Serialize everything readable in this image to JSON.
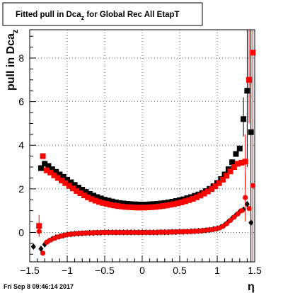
{
  "chart_data": {
    "type": "scatter",
    "title_main": "Fitted pull in Dca",
    "title_sub": "z",
    "title_rest": " for Global Rec All EtapT",
    "ylabel_main": "pull in Dca",
    "ylabel_sub": "z",
    "xlabel": "η",
    "timestamp": "Fri Sep  8 09:46:14 2017",
    "xlim": [
      -1.5,
      1.5
    ],
    "ylim": [
      -1.35,
      9.3
    ],
    "grid": true,
    "xticks": [
      -1.5,
      -1,
      -0.5,
      0,
      0.5,
      1,
      1.5
    ],
    "xtick_labels": [
      "−1.5",
      "−1",
      "−0.5",
      "0",
      "0.5",
      "1",
      "1.5"
    ],
    "yticks": [
      0,
      2,
      4,
      6,
      8
    ],
    "ytick_labels": [
      "0",
      "2",
      "4",
      "6",
      "8"
    ],
    "colors": {
      "black": "#000000",
      "red": "#ff0000"
    },
    "series": [
      {
        "marker": "square",
        "color": "#000000",
        "x": [
          -1.35,
          -1.3,
          -1.25,
          -1.2,
          -1.15,
          -1.1,
          -1.05,
          -1.0,
          -0.95,
          -0.9,
          -0.85,
          -0.8,
          -0.75,
          -0.7,
          -0.65,
          -0.6,
          -0.55,
          -0.5,
          -0.45,
          -0.4,
          -0.35,
          -0.3,
          -0.25,
          -0.2,
          -0.15,
          -0.1,
          -0.05,
          0.0,
          0.05,
          0.1,
          0.15,
          0.2,
          0.25,
          0.3,
          0.35,
          0.4,
          0.45,
          0.5,
          0.55,
          0.6,
          0.65,
          0.7,
          0.75,
          0.8,
          0.85,
          0.9,
          0.95,
          1.0,
          1.05,
          1.1,
          1.15,
          1.2,
          1.25,
          1.3,
          1.35,
          1.4,
          1.45
        ],
        "y": [
          2.95,
          3.15,
          3.05,
          2.9,
          2.78,
          2.66,
          2.55,
          2.42,
          2.3,
          2.18,
          2.06,
          1.96,
          1.86,
          1.77,
          1.69,
          1.62,
          1.56,
          1.5,
          1.46,
          1.42,
          1.38,
          1.35,
          1.33,
          1.31,
          1.3,
          1.29,
          1.28,
          1.28,
          1.28,
          1.29,
          1.3,
          1.31,
          1.33,
          1.35,
          1.38,
          1.41,
          1.44,
          1.48,
          1.52,
          1.57,
          1.62,
          1.68,
          1.74,
          1.81,
          1.9,
          2.0,
          2.12,
          2.27,
          2.45,
          2.66,
          2.9,
          3.22,
          3.6,
          3.85,
          5.2,
          6.5,
          4.6
        ]
      },
      {
        "marker": "square",
        "color": "#ff0000",
        "x": [
          -1.375,
          -1.325,
          -1.275,
          -1.225,
          -1.175,
          -1.125,
          -1.075,
          -1.025,
          -0.975,
          -0.925,
          -0.875,
          -0.825,
          -0.775,
          -0.725,
          -0.675,
          -0.625,
          -0.575,
          -0.525,
          -0.475,
          -0.425,
          -0.375,
          -0.325,
          -0.275,
          -0.225,
          -0.175,
          -0.125,
          -0.075,
          -0.025,
          0.025,
          0.075,
          0.125,
          0.175,
          0.225,
          0.275,
          0.325,
          0.375,
          0.425,
          0.475,
          0.525,
          0.575,
          0.625,
          0.675,
          0.725,
          0.775,
          0.825,
          0.875,
          0.925,
          0.975,
          1.025,
          1.075,
          1.125,
          1.175,
          1.225,
          1.275,
          1.325,
          1.375,
          1.425,
          1.475
        ],
        "y": [
          0.3,
          3.5,
          2.85,
          2.75,
          2.62,
          2.5,
          2.38,
          2.26,
          2.14,
          2.02,
          1.9,
          1.8,
          1.7,
          1.61,
          1.53,
          1.46,
          1.4,
          1.35,
          1.31,
          1.27,
          1.24,
          1.21,
          1.19,
          1.17,
          1.16,
          1.15,
          1.14,
          1.14,
          1.14,
          1.15,
          1.16,
          1.17,
          1.19,
          1.21,
          1.24,
          1.27,
          1.3,
          1.34,
          1.38,
          1.43,
          1.48,
          1.54,
          1.61,
          1.69,
          1.78,
          1.88,
          1.99,
          2.12,
          2.26,
          2.42,
          2.6,
          2.8,
          3.0,
          3.15,
          3.2,
          3.25,
          7.0,
          8.25
        ]
      },
      {
        "marker": "diamond",
        "color": "#000000",
        "x": [
          -1.45,
          -1.35,
          -1.3,
          -1.25,
          -1.2,
          -1.15,
          -1.1,
          -1.05,
          -1.0,
          -0.95,
          -0.9,
          -0.85,
          -0.8,
          -0.75,
          -0.7,
          -0.65,
          -0.6,
          -0.55,
          -0.5,
          -0.45,
          -0.4,
          -0.35,
          -0.3,
          -0.25,
          -0.2,
          -0.15,
          -0.1,
          -0.05,
          0.0,
          0.05,
          0.1,
          0.15,
          0.2,
          0.25,
          0.3,
          0.35,
          0.4,
          0.45,
          0.5,
          0.55,
          0.6,
          0.65,
          0.7,
          0.75,
          0.8,
          0.85,
          0.9,
          0.95,
          1.0,
          1.05,
          1.1,
          1.15,
          1.2,
          1.25,
          1.3,
          1.35,
          1.4,
          1.45
        ],
        "y": [
          -0.65,
          -0.75,
          -0.55,
          -0.4,
          -0.3,
          -0.23,
          -0.18,
          -0.14,
          -0.1,
          -0.08,
          -0.06,
          -0.05,
          -0.04,
          -0.03,
          -0.02,
          -0.02,
          -0.01,
          -0.01,
          0.0,
          0.0,
          0.0,
          0.0,
          0.0,
          0.0,
          0.0,
          0.0,
          0.0,
          0.0,
          0.0,
          0.0,
          0.0,
          0.0,
          0.0,
          0.01,
          0.01,
          0.01,
          0.02,
          0.02,
          0.03,
          0.03,
          0.04,
          0.05,
          0.06,
          0.07,
          0.08,
          0.1,
          0.12,
          0.15,
          0.18,
          0.25,
          0.35,
          0.5,
          0.65,
          0.8,
          0.95,
          1.05,
          1.3,
          0.45
        ]
      },
      {
        "marker": "circle",
        "color": "#ff0000",
        "x": [
          -1.375,
          -1.325,
          -1.275,
          -1.225,
          -1.175,
          -1.125,
          -1.075,
          -1.025,
          -0.975,
          -0.925,
          -0.875,
          -0.825,
          -0.775,
          -0.725,
          -0.675,
          -0.625,
          -0.575,
          -0.525,
          -0.475,
          -0.425,
          -0.375,
          -0.325,
          -0.275,
          -0.225,
          -0.175,
          -0.125,
          -0.075,
          -0.025,
          0.025,
          0.075,
          0.125,
          0.175,
          0.225,
          0.275,
          0.325,
          0.375,
          0.425,
          0.475,
          0.525,
          0.575,
          0.625,
          0.675,
          0.725,
          0.775,
          0.825,
          0.875,
          0.925,
          0.975,
          1.025,
          1.075,
          1.125,
          1.175,
          1.225,
          1.275,
          1.325,
          1.375,
          1.425,
          1.475
        ],
        "y": [
          0.05,
          -0.95,
          -0.45,
          -0.35,
          -0.27,
          -0.21,
          -0.16,
          -0.12,
          -0.09,
          -0.07,
          -0.05,
          -0.04,
          -0.03,
          -0.02,
          -0.02,
          -0.01,
          -0.01,
          0.0,
          0.0,
          0.0,
          0.0,
          0.0,
          0.0,
          0.0,
          0.0,
          0.0,
          0.0,
          0.0,
          0.0,
          0.0,
          0.0,
          0.0,
          0.01,
          0.01,
          0.01,
          0.02,
          0.02,
          0.03,
          0.03,
          0.04,
          0.04,
          0.05,
          0.06,
          0.07,
          0.09,
          0.11,
          0.13,
          0.16,
          0.2,
          0.28,
          0.4,
          0.55,
          0.7,
          0.85,
          1.0,
          1.6,
          1.1,
          2.15
        ]
      }
    ],
    "error_bars": [
      {
        "x": 1.35,
        "y": 5.2,
        "low": 4.4,
        "high": 6.2,
        "color": "#000000"
      },
      {
        "x": 1.4,
        "y": 6.5,
        "low": 3.0,
        "high": 9.3,
        "color": "#000000"
      },
      {
        "x": 1.45,
        "y": 4.6,
        "low": -1.35,
        "high": 9.3,
        "color": "#000000"
      },
      {
        "x": 1.375,
        "y": 3.25,
        "low": 2.0,
        "high": 4.5,
        "color": "#ff0000"
      },
      {
        "x": 1.425,
        "y": 7.0,
        "low": 5.0,
        "high": 9.3,
        "color": "#ff0000"
      },
      {
        "x": 1.475,
        "y": 8.25,
        "low": -1.35,
        "high": 9.3,
        "color": "#ff0000"
      },
      {
        "x": 1.375,
        "y": 1.6,
        "low": 0.5,
        "high": 2.7,
        "color": "#ff0000"
      },
      {
        "x": -1.375,
        "y": 0.3,
        "low": -0.2,
        "high": 0.8,
        "color": "#ff0000"
      }
    ]
  }
}
